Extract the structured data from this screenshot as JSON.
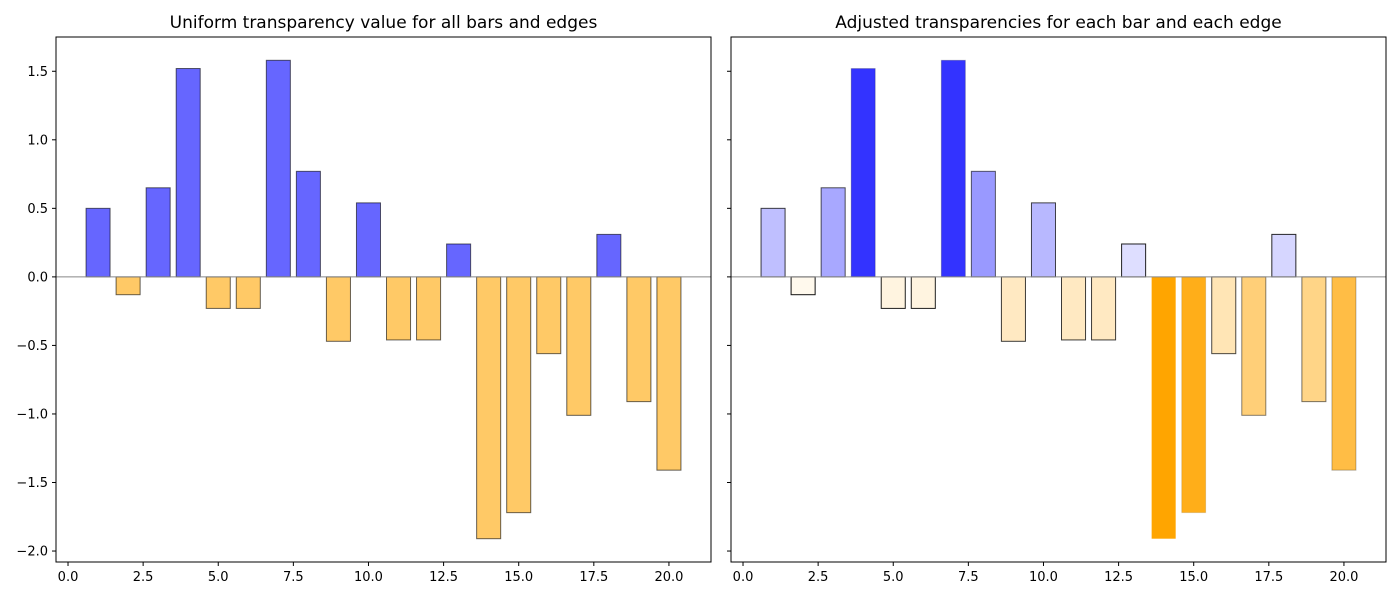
{
  "chart_data": [
    {
      "type": "bar",
      "title": "Uniform transparency value for all bars and edges",
      "xlabel": "",
      "ylabel": "",
      "xlim": [
        -0.4,
        21.4
      ],
      "ylim": [
        -2.08,
        1.75
      ],
      "x_ticks": [
        0.0,
        2.5,
        5.0,
        7.5,
        10.0,
        12.5,
        15.0,
        17.5,
        20.0
      ],
      "x_tick_labels": [
        "0.0",
        "2.5",
        "5.0",
        "7.5",
        "10.0",
        "12.5",
        "15.0",
        "17.5",
        "20.0"
      ],
      "y_ticks": [
        -2.0,
        -1.5,
        -1.0,
        -0.5,
        0.0,
        0.5,
        1.0,
        1.5
      ],
      "y_tick_labels": [
        "−2.0",
        "−1.5",
        "−1.0",
        "−0.5",
        "0.0",
        "0.5",
        "1.0",
        "1.5"
      ],
      "show_y_tick_labels": true,
      "grid": false,
      "x": [
        1,
        2,
        3,
        4,
        5,
        6,
        7,
        8,
        9,
        10,
        11,
        12,
        13,
        14,
        15,
        16,
        17,
        18,
        19,
        20
      ],
      "values": [
        0.5,
        -0.13,
        0.65,
        1.52,
        -0.23,
        -0.23,
        1.58,
        0.77,
        -0.47,
        0.54,
        -0.46,
        -0.46,
        0.24,
        -1.91,
        -1.72,
        -0.56,
        -1.01,
        0.31,
        -0.91,
        -1.41
      ],
      "positive_color": "#0000ff",
      "negative_color": "#ffa500",
      "edge_color": "#000000",
      "face_alpha": [
        0.6,
        0.6,
        0.6,
        0.6,
        0.6,
        0.6,
        0.6,
        0.6,
        0.6,
        0.6,
        0.6,
        0.6,
        0.6,
        0.6,
        0.6,
        0.6,
        0.6,
        0.6,
        0.6,
        0.6
      ],
      "edge_alpha": [
        0.6,
        0.6,
        0.6,
        0.6,
        0.6,
        0.6,
        0.6,
        0.6,
        0.6,
        0.6,
        0.6,
        0.6,
        0.6,
        0.6,
        0.6,
        0.6,
        0.6,
        0.6,
        0.6,
        0.6
      ]
    },
    {
      "type": "bar",
      "title": "Adjusted transparencies for each bar and each edge",
      "xlabel": "",
      "ylabel": "",
      "xlim": [
        -0.4,
        21.4
      ],
      "ylim": [
        -2.08,
        1.75
      ],
      "x_ticks": [
        0.0,
        2.5,
        5.0,
        7.5,
        10.0,
        12.5,
        15.0,
        17.5,
        20.0
      ],
      "x_tick_labels": [
        "0.0",
        "2.5",
        "5.0",
        "7.5",
        "10.0",
        "12.5",
        "15.0",
        "17.5",
        "20.0"
      ],
      "y_ticks": [
        -2.0,
        -1.5,
        -1.0,
        -0.5,
        0.0,
        0.5,
        1.0,
        1.5
      ],
      "y_tick_labels": [
        "",
        "",
        "",
        "",
        "",
        "",
        "",
        ""
      ],
      "show_y_tick_labels": false,
      "grid": false,
      "x": [
        1,
        2,
        3,
        4,
        5,
        6,
        7,
        8,
        9,
        10,
        11,
        12,
        13,
        14,
        15,
        16,
        17,
        18,
        19,
        20
      ],
      "values": [
        0.5,
        -0.13,
        0.65,
        1.52,
        -0.23,
        -0.23,
        1.58,
        0.77,
        -0.47,
        0.54,
        -0.46,
        -0.46,
        0.24,
        -1.91,
        -1.72,
        -0.56,
        -1.01,
        0.31,
        -0.91,
        -1.41
      ],
      "positive_color": "#0000ff",
      "negative_color": "#ffa500",
      "edge_color": "#000000",
      "face_alpha": [
        0.25,
        0.07,
        0.34,
        0.8,
        0.12,
        0.12,
        0.8,
        0.4,
        0.24,
        0.28,
        0.24,
        0.24,
        0.13,
        1.0,
        0.9,
        0.29,
        0.53,
        0.16,
        0.47,
        0.73
      ],
      "edge_alpha": [
        0.75,
        0.93,
        0.66,
        0.2,
        0.88,
        0.88,
        0.2,
        0.6,
        0.76,
        0.72,
        0.76,
        0.76,
        0.87,
        0.0,
        0.1,
        0.71,
        0.47,
        0.84,
        0.53,
        0.27
      ]
    }
  ]
}
